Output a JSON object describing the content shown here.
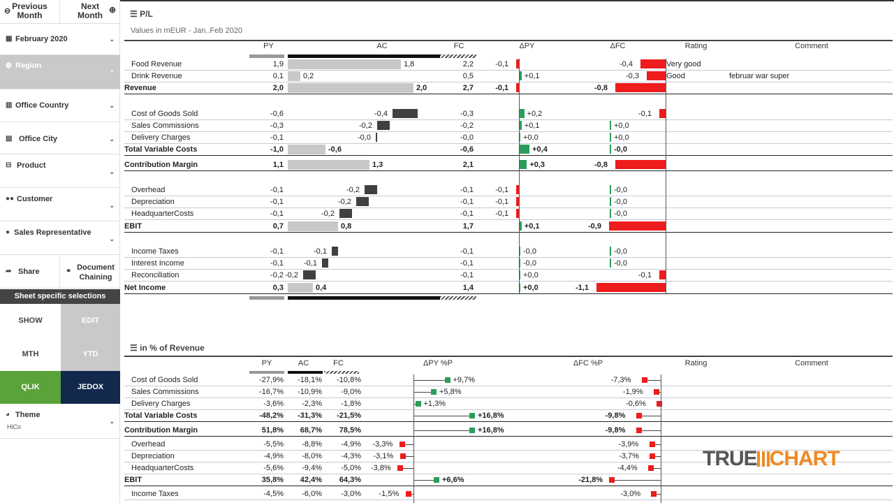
{
  "sidebar": {
    "prev": "Previous Month",
    "next": "Next Month",
    "period": "February 2020",
    "region": "Region",
    "office_country": "Office Country",
    "office_city": "Office City",
    "product": "Product",
    "customer": "Customer",
    "sales_rep": "Sales Representative",
    "share": "Share",
    "doc_chaining": "Document Chaining",
    "sheet_sel": "Sheet specific selections",
    "show": "SHOW",
    "edit": "EDIT",
    "mth": "MTH",
    "ytd": "YTD",
    "qlik": "QLIK",
    "jedox": "JEDOX",
    "theme": "Theme",
    "theme_val": "HiCo"
  },
  "pl": {
    "title": "P/L",
    "subtitle": "Values in mEUR - Jan..Feb 2020",
    "cols": [
      "PY",
      "AC",
      "FC",
      "ΔPY",
      "ΔFC",
      "Rating",
      "Comment"
    ],
    "rows": [
      {
        "label": "Food Revenue",
        "py": "1,9",
        "ac": "1,8",
        "fc": "2,2",
        "dpy": "-0,1",
        "dfc": "-0,4",
        "rating": "Very good",
        "comment": ""
      },
      {
        "label": "Drink Revenue",
        "py": "0,1",
        "ac": "0,2",
        "fc": "0,5",
        "dpy": "+0,1",
        "dfc": "-0,3",
        "rating": "Good",
        "comment": "februar war super"
      },
      {
        "label": "Revenue",
        "py": "2,0",
        "ac": "2,0",
        "fc": "2,7",
        "dpy": "-0,1",
        "dfc": "-0,8",
        "rating": "",
        "comment": "",
        "bold": true
      },
      {
        "label": "Cost of Goods Sold",
        "py": "-0,6",
        "ac": "-0,4",
        "fc": "-0,3",
        "dpy": "+0,2",
        "dfc": "-0,1",
        "rating": "",
        "comment": ""
      },
      {
        "label": "Sales Commissions",
        "py": "-0,3",
        "ac": "-0,2",
        "fc": "-0,2",
        "dpy": "+0,1",
        "dfc": "+0,0",
        "rating": "",
        "comment": ""
      },
      {
        "label": "Delivery Charges",
        "py": "-0,1",
        "ac": "-0,0",
        "fc": "-0,0",
        "dpy": "+0,0",
        "dfc": "+0,0",
        "rating": "",
        "comment": ""
      },
      {
        "label": "Total Variable Costs",
        "py": "-1,0",
        "ac": "-0,6",
        "fc": "-0,6",
        "dpy": "+0,4",
        "dfc": "-0,0",
        "rating": "",
        "comment": "",
        "bold": true
      },
      {
        "label": "Contribution Margin",
        "py": "1,1",
        "ac": "1,3",
        "fc": "2,1",
        "dpy": "+0,3",
        "dfc": "-0,8",
        "rating": "",
        "comment": "",
        "bold": true
      },
      {
        "label": "Overhead",
        "py": "-0,1",
        "ac": "-0,2",
        "fc": "-0,1",
        "dpy": "-0,1",
        "dfc": "-0,0",
        "rating": "",
        "comment": ""
      },
      {
        "label": "Depreciation",
        "py": "-0,1",
        "ac": "-0,2",
        "fc": "-0,1",
        "dpy": "-0,1",
        "dfc": "-0,0",
        "rating": "",
        "comment": ""
      },
      {
        "label": "HeadquarterCosts",
        "py": "-0,1",
        "ac": "-0,2",
        "fc": "-0,1",
        "dpy": "-0,1",
        "dfc": "-0,0",
        "rating": "",
        "comment": ""
      },
      {
        "label": "EBIT",
        "py": "0,7",
        "ac": "0,8",
        "fc": "1,7",
        "dpy": "+0,1",
        "dfc": "-0,9",
        "rating": "",
        "comment": "",
        "bold": true
      },
      {
        "label": "Income Taxes",
        "py": "-0,1",
        "ac": "-0,1",
        "fc": "-0,1",
        "dpy": "-0,0",
        "dfc": "-0,0",
        "rating": "",
        "comment": ""
      },
      {
        "label": "Interest Income",
        "py": "-0,1",
        "ac": "-0,1",
        "fc": "-0,1",
        "dpy": "-0,0",
        "dfc": "-0,0",
        "rating": "",
        "comment": ""
      },
      {
        "label": "Reconciliation",
        "py": "-0,2",
        "ac": "-0,2",
        "fc": "-0,1",
        "dpy": "+0,0",
        "dfc": "-0,1",
        "rating": "",
        "comment": ""
      },
      {
        "label": "Net Income",
        "py": "0,3",
        "ac": "0,4",
        "fc": "1,4",
        "dpy": "+0,0",
        "dfc": "-1,1",
        "rating": "",
        "comment": "",
        "bold": true
      }
    ]
  },
  "pct": {
    "title": "in % of Revenue",
    "cols": [
      "PY",
      "AC",
      "FC",
      "ΔPY %P",
      "ΔFC %P",
      "Rating",
      "Comment"
    ],
    "rows": [
      {
        "label": "Cost of Goods Sold",
        "py": "-27,9%",
        "ac": "-18,1%",
        "fc": "-10,8%",
        "dpy": "+9,7%",
        "dfc": "-7,3%"
      },
      {
        "label": "Sales Commissions",
        "py": "-16,7%",
        "ac": "-10,9%",
        "fc": "-9,0%",
        "dpy": "+5,8%",
        "dfc": "-1,9%"
      },
      {
        "label": "Delivery Charges",
        "py": "-3,6%",
        "ac": "-2,3%",
        "fc": "-1,8%",
        "dpy": "+1,3%",
        "dfc": "-0,6%"
      },
      {
        "label": "Total Variable Costs",
        "py": "-48,2%",
        "ac": "-31,3%",
        "fc": "-21,5%",
        "dpy": "+16,8%",
        "dfc": "-9,8%",
        "bold": true
      },
      {
        "label": "Contribution Margin",
        "py": "51,8%",
        "ac": "68,7%",
        "fc": "78,5%",
        "dpy": "+16,8%",
        "dfc": "-9,8%",
        "bold": true
      },
      {
        "label": "Overhead",
        "py": "-5,5%",
        "ac": "-8,8%",
        "fc": "-4,9%",
        "dpy": "-3,3%",
        "dfc": "-3,9%"
      },
      {
        "label": "Depreciation",
        "py": "-4,9%",
        "ac": "-8,0%",
        "fc": "-4,3%",
        "dpy": "-3,1%",
        "dfc": "-3,7%"
      },
      {
        "label": "HeadquarterCosts",
        "py": "-5,6%",
        "ac": "-9,4%",
        "fc": "-5,0%",
        "dpy": "-3,8%",
        "dfc": "-4,4%"
      },
      {
        "label": "EBIT",
        "py": "35,8%",
        "ac": "42,4%",
        "fc": "64,3%",
        "dpy": "+6,6%",
        "dfc": "-21,8%",
        "bold": true
      },
      {
        "label": "Income Taxes",
        "py": "-4,5%",
        "ac": "-6,0%",
        "fc": "-3,0%",
        "dpy": "-1,5%",
        "dfc": "-3,0%"
      }
    ]
  },
  "logo": {
    "a": "TRUE",
    "b": "CHART"
  }
}
